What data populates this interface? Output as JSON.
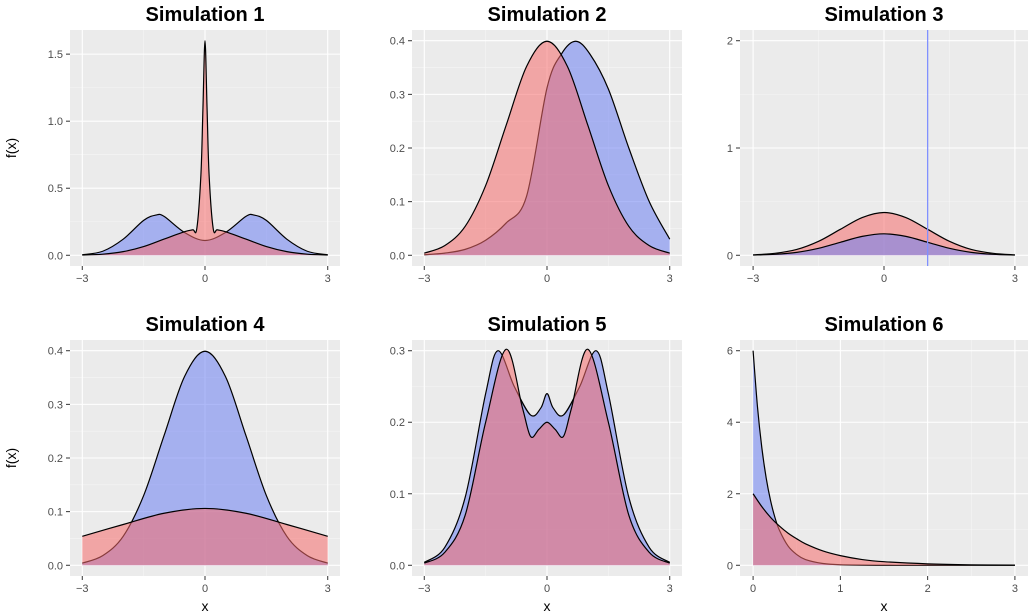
{
  "colors": {
    "series_a_fill": "#6b7ff2",
    "series_b_fill": "#f56b6b",
    "vline": "#8090ff",
    "outline": "#000000",
    "panel_bg": "#ebebeb",
    "grid": "#ffffff"
  },
  "chart_data": [
    {
      "type": "area",
      "title": "Simulation 1",
      "xlabel": "",
      "ylabel": "f(x)",
      "xlim": [
        -3,
        3
      ],
      "ylim": [
        0,
        1.6
      ],
      "xticks": [
        -3,
        0,
        3
      ],
      "xtick_labels": [
        "−3",
        "0",
        "3"
      ],
      "yticks": [
        0,
        0.5,
        1,
        1.5
      ],
      "ytick_labels": [
        "0.0",
        "0.5",
        "1.0",
        "1.5"
      ],
      "grid": true,
      "series": [
        {
          "color": "#6b7ff2",
          "x": [
            -3,
            -2.5,
            -2,
            -1.5,
            -1.2,
            -1,
            -0.5,
            0,
            0.5,
            1,
            1.2,
            1.5,
            2,
            2.5,
            3
          ],
          "y": [
            0.004,
            0.03,
            0.12,
            0.26,
            0.3,
            0.29,
            0.17,
            0.11,
            0.17,
            0.29,
            0.3,
            0.26,
            0.12,
            0.03,
            0.004
          ]
        },
        {
          "color": "#f56b6b",
          "x": [
            -3,
            -2.5,
            -2,
            -1.5,
            -1,
            -0.5,
            -0.3,
            -0.2,
            -0.1,
            -0.05,
            0,
            0.05,
            0.1,
            0.2,
            0.3,
            0.5,
            1,
            1.5,
            2,
            2.5,
            3
          ],
          "y": [
            0.002,
            0.008,
            0.027,
            0.065,
            0.121,
            0.176,
            0.19,
            0.2,
            0.6,
            1.1,
            1.6,
            1.1,
            0.6,
            0.2,
            0.19,
            0.176,
            0.121,
            0.065,
            0.027,
            0.008,
            0.002
          ]
        }
      ]
    },
    {
      "type": "area",
      "title": "Simulation 2",
      "xlabel": "",
      "ylabel": "",
      "xlim": [
        -3,
        3
      ],
      "ylim": [
        0,
        0.4
      ],
      "xticks": [
        -3,
        0,
        3
      ],
      "xtick_labels": [
        "−3",
        "0",
        "3"
      ],
      "yticks": [
        0,
        0.1,
        0.2,
        0.3,
        0.4
      ],
      "ytick_labels": [
        "0.0",
        "0.1",
        "0.2",
        "0.3",
        "0.4"
      ],
      "grid": true,
      "series": [
        {
          "color": "#6b7ff2",
          "x": [
            -3,
            -2.5,
            -2,
            -1.5,
            -1,
            -0.5,
            0,
            0.35,
            0.7,
            1.05,
            1.5,
            2,
            2.5,
            3
          ],
          "y": [
            0.001,
            0.004,
            0.011,
            0.028,
            0.06,
            0.11,
            0.312,
            0.375,
            0.399,
            0.375,
            0.31,
            0.2,
            0.1,
            0.03
          ]
        },
        {
          "color": "#f56b6b",
          "x": [
            -3,
            -2.5,
            -2,
            -1.5,
            -1,
            -0.5,
            0,
            0.5,
            1,
            1.5,
            2,
            2.5,
            3
          ],
          "y": [
            0.004,
            0.018,
            0.054,
            0.13,
            0.242,
            0.352,
            0.399,
            0.352,
            0.242,
            0.13,
            0.054,
            0.018,
            0.004
          ]
        }
      ]
    },
    {
      "type": "area",
      "title": "Simulation 3",
      "xlabel": "",
      "ylabel": "",
      "xlim": [
        -3,
        3
      ],
      "ylim": [
        0,
        2
      ],
      "xticks": [
        -3,
        0,
        3
      ],
      "xtick_labels": [
        "−3",
        "0",
        "3"
      ],
      "yticks": [
        0,
        1,
        2
      ],
      "ytick_labels": [
        "0",
        "1",
        "2"
      ],
      "grid": true,
      "vline_x": 1,
      "series": [
        {
          "color": "#f56b6b",
          "x": [
            -3,
            -2.5,
            -2,
            -1.5,
            -1,
            -0.5,
            0,
            0.5,
            1,
            1.5,
            2,
            2.5,
            3
          ],
          "y": [
            0.004,
            0.018,
            0.054,
            0.13,
            0.242,
            0.352,
            0.399,
            0.352,
            0.242,
            0.13,
            0.054,
            0.018,
            0.004
          ]
        },
        {
          "color": "#6b7ff2",
          "x": [
            -3,
            -2.5,
            -2,
            -1.5,
            -1,
            -0.5,
            0,
            0.5,
            1,
            1.5,
            2,
            2.5,
            3
          ],
          "y": [
            0.002,
            0.009,
            0.027,
            0.065,
            0.121,
            0.176,
            0.2,
            0.176,
            0.121,
            0.065,
            0.027,
            0.009,
            0.002
          ]
        }
      ]
    },
    {
      "type": "area",
      "title": "Simulation 4",
      "xlabel": "x",
      "ylabel": "f(x)",
      "xlim": [
        -3,
        3
      ],
      "ylim": [
        0,
        0.4
      ],
      "xticks": [
        -3,
        0,
        3
      ],
      "xtick_labels": [
        "−3",
        "0",
        "3"
      ],
      "yticks": [
        0,
        0.1,
        0.2,
        0.3,
        0.4
      ],
      "ytick_labels": [
        "0.0",
        "0.1",
        "0.2",
        "0.3",
        "0.4"
      ],
      "grid": true,
      "series": [
        {
          "color": "#6b7ff2",
          "x": [
            -3,
            -2.5,
            -2,
            -1.5,
            -1,
            -0.5,
            0,
            0.5,
            1,
            1.5,
            2,
            2.5,
            3
          ],
          "y": [
            0.004,
            0.018,
            0.054,
            0.13,
            0.242,
            0.352,
            0.399,
            0.352,
            0.242,
            0.13,
            0.054,
            0.018,
            0.004
          ]
        },
        {
          "color": "#f56b6b",
          "x": [
            -3,
            -2,
            -1,
            0,
            1,
            2,
            3
          ],
          "y": [
            0.054,
            0.076,
            0.097,
            0.106,
            0.097,
            0.076,
            0.054
          ]
        }
      ]
    },
    {
      "type": "area",
      "title": "Simulation 5",
      "xlabel": "x",
      "ylabel": "",
      "xlim": [
        -3,
        3
      ],
      "ylim": [
        0,
        0.3
      ],
      "xticks": [
        -3,
        0,
        3
      ],
      "xtick_labels": [
        "−3",
        "0",
        "3"
      ],
      "yticks": [
        0,
        0.1,
        0.2,
        0.3
      ],
      "ytick_labels": [
        "0.0",
        "0.1",
        "0.2",
        "0.3"
      ],
      "grid": true,
      "series": [
        {
          "color": "#6b7ff2",
          "x": [
            -3,
            -2.5,
            -2,
            -1.5,
            -1.2,
            -0.8,
            -0.4,
            -0.15,
            0,
            0.15,
            0.4,
            0.8,
            1.2,
            1.5,
            2,
            2.5,
            3
          ],
          "y": [
            0.004,
            0.025,
            0.095,
            0.24,
            0.3,
            0.25,
            0.21,
            0.22,
            0.24,
            0.22,
            0.21,
            0.25,
            0.3,
            0.24,
            0.095,
            0.025,
            0.004
          ]
        },
        {
          "color": "#f56b6b",
          "x": [
            -3,
            -2.5,
            -2,
            -1.5,
            -1,
            -0.6,
            -0.4,
            -0.2,
            0,
            0.2,
            0.4,
            0.6,
            1,
            1.5,
            2,
            2.5,
            3
          ],
          "y": [
            0.003,
            0.018,
            0.07,
            0.2,
            0.302,
            0.22,
            0.18,
            0.19,
            0.2,
            0.19,
            0.18,
            0.22,
            0.302,
            0.2,
            0.07,
            0.018,
            0.003
          ]
        }
      ]
    },
    {
      "type": "area",
      "title": "Simulation 6",
      "xlabel": "x",
      "ylabel": "",
      "xlim": [
        0,
        3
      ],
      "ylim": [
        0,
        6
      ],
      "xticks": [
        0,
        1,
        2,
        3
      ],
      "xtick_labels": [
        "0",
        "1",
        "2",
        "3"
      ],
      "yticks": [
        0,
        2,
        4,
        6
      ],
      "ytick_labels": [
        "0",
        "2",
        "4",
        "6"
      ],
      "grid": true,
      "series": [
        {
          "color": "#6b7ff2",
          "x": [
            0,
            0.05,
            0.1,
            0.15,
            0.2,
            0.25,
            0.3,
            0.4,
            0.5,
            0.6,
            0.8,
            1,
            1.5,
            2,
            3
          ],
          "y": [
            6,
            4.44,
            3.29,
            2.44,
            1.81,
            1.34,
            0.99,
            0.54,
            0.3,
            0.16,
            0.05,
            0.015,
            0.001,
            0,
            0
          ]
        },
        {
          "color": "#f56b6b",
          "x": [
            0,
            0.1,
            0.2,
            0.3,
            0.4,
            0.5,
            0.6,
            0.8,
            1,
            1.25,
            1.5,
            2,
            2.5,
            3
          ],
          "y": [
            2,
            1.64,
            1.34,
            1.1,
            0.9,
            0.74,
            0.6,
            0.4,
            0.27,
            0.16,
            0.1,
            0.04,
            0.013,
            0.005
          ]
        }
      ]
    }
  ]
}
